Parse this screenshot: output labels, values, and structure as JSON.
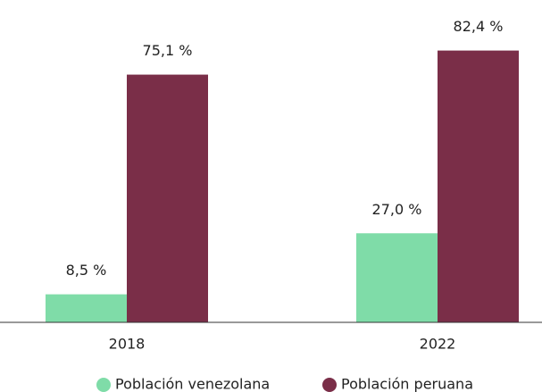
{
  "chart_data": {
    "type": "bar",
    "categories": [
      "2018",
      "2022"
    ],
    "series": [
      {
        "name": "Población venezolana",
        "color": "#7fdca8",
        "values": [
          8.5,
          27.0
        ],
        "value_labels": [
          "8,5 %",
          "27,0 %"
        ]
      },
      {
        "name": "Población peruana",
        "color": "#7a2e48",
        "values": [
          75.1,
          82.4
        ],
        "value_labels": [
          "75,1 %",
          "82,4 %"
        ]
      }
    ],
    "ylim": [
      0,
      85
    ],
    "legend": "bottom"
  }
}
